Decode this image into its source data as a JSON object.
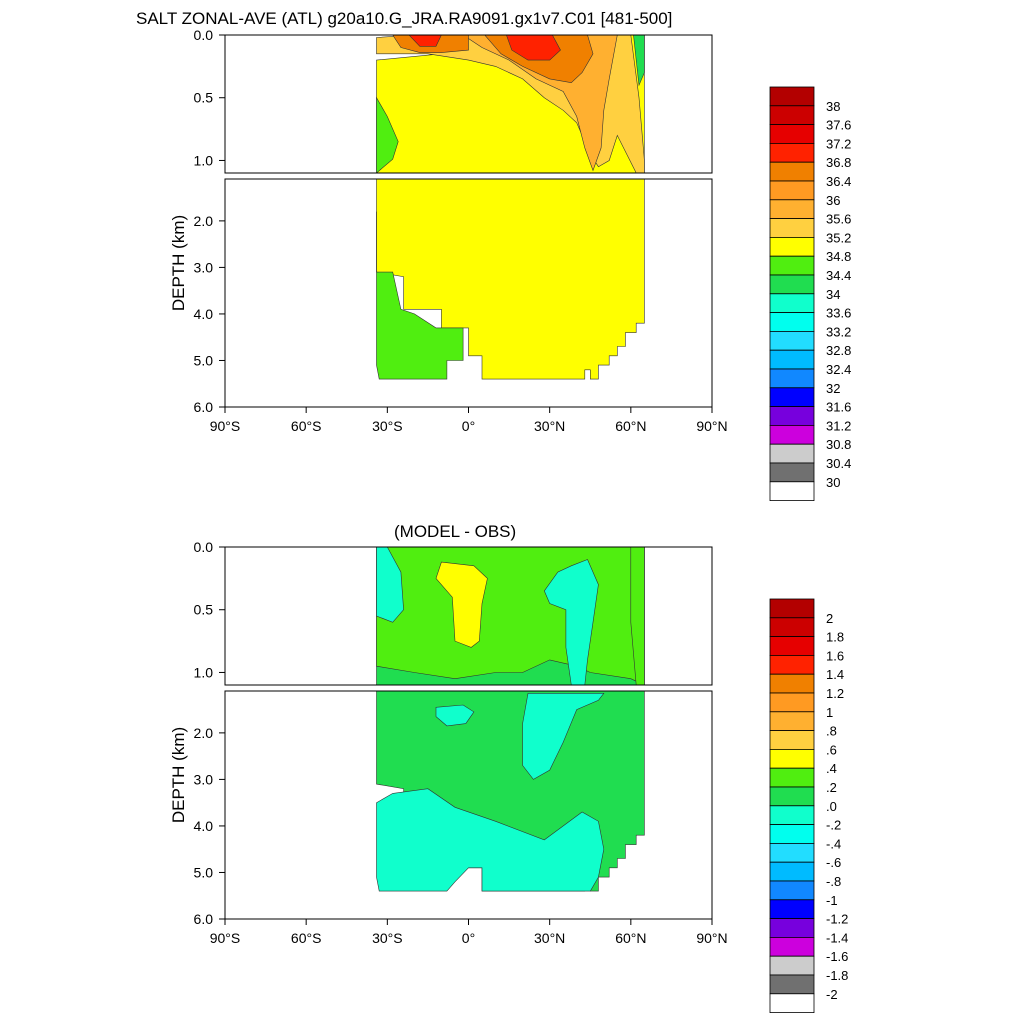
{
  "titles": {
    "top": "SALT ZONAL-AVE (ATL) g20a10.G_JRA.RA9091.gx1v7.C01 [481-500]",
    "bottom": "(MODEL - OBS)"
  },
  "chart_data": [
    {
      "type": "heatmap",
      "name": "salinity",
      "title": "SALT ZONAL-AVE (ATL) g20a10.G_JRA.RA9091.gx1v7.C01 [481-500]",
      "ylabel": "DEPTH (km)",
      "xlim": [
        -90,
        90
      ],
      "ylim": [
        6.0,
        0.0
      ],
      "y_break_km": 1.1,
      "x_ticks": [
        {
          "value": -90,
          "label": "90°S"
        },
        {
          "value": -60,
          "label": "60°S"
        },
        {
          "value": -30,
          "label": "30°S"
        },
        {
          "value": 0,
          "label": "0°"
        },
        {
          "value": 30,
          "label": "30°N"
        },
        {
          "value": 60,
          "label": "60°N"
        },
        {
          "value": 90,
          "label": "90°N"
        }
      ],
      "y_ticks_upper": [
        {
          "value": 0.0,
          "label": "0.0"
        },
        {
          "value": 0.5,
          "label": "0.5"
        },
        {
          "value": 1.0,
          "label": "1.0"
        }
      ],
      "y_ticks_lower": [
        {
          "value": 2.0,
          "label": "2.0"
        },
        {
          "value": 3.0,
          "label": "3.0"
        },
        {
          "value": 4.0,
          "label": "4.0"
        },
        {
          "value": 5.0,
          "label": "5.0"
        },
        {
          "value": 6.0,
          "label": "6.0"
        }
      ],
      "data_lat_range": [
        -34,
        65
      ],
      "colorbar": {
        "labels": [
          "38",
          "37.6",
          "37.2",
          "36.8",
          "36.4",
          "36",
          "35.6",
          "35.2",
          "34.8",
          "34.4",
          "34",
          "33.6",
          "33.2",
          "32.8",
          "32.4",
          "32",
          "31.6",
          "31.2",
          "30.8",
          "30.4",
          "30"
        ],
        "colors": [
          "#b30000",
          "#cc0000",
          "#e60000",
          "#ff2200",
          "#f08000",
          "#ff9a22",
          "#ffb030",
          "#ffd040",
          "#ffff00",
          "#50ee10",
          "#20dd50",
          "#10ffcc",
          "#00ffee",
          "#22ddff",
          "#00bbff",
          "#1188ff",
          "#0000ff",
          "#7700dd",
          "#cc00dd",
          "#cccccc",
          "#707070",
          "#ffffff"
        ]
      },
      "regions": [
        {
          "id": "background",
          "value": "35.0"
        },
        {
          "id": "south-fresh-upper",
          "value": "34.6"
        },
        {
          "id": "south-fresh-deep",
          "value": "34.6"
        },
        {
          "id": "subtropical-salty",
          "value": "35.4"
        },
        {
          "id": "salty-tongue",
          "value": "35.8"
        },
        {
          "id": "core-south",
          "value": "36.6"
        },
        {
          "id": "core-north",
          "value": "36.6"
        },
        {
          "id": "max-south",
          "value": "37.0"
        },
        {
          "id": "max-north",
          "value": "37.0"
        },
        {
          "id": "arctic-edge",
          "value": "34.2"
        }
      ]
    },
    {
      "type": "heatmap",
      "name": "difference",
      "title": "(MODEL - OBS)",
      "ylabel": "DEPTH (km)",
      "xlim": [
        -90,
        90
      ],
      "ylim": [
        6.0,
        0.0
      ],
      "y_break_km": 1.1,
      "x_ticks": [
        {
          "value": -90,
          "label": "90°S"
        },
        {
          "value": -60,
          "label": "60°S"
        },
        {
          "value": -30,
          "label": "30°S"
        },
        {
          "value": 0,
          "label": "0°"
        },
        {
          "value": 30,
          "label": "30°N"
        },
        {
          "value": 60,
          "label": "60°N"
        },
        {
          "value": 90,
          "label": "90°N"
        }
      ],
      "y_ticks_upper": [
        {
          "value": 0.0,
          "label": "0.0"
        },
        {
          "value": 0.5,
          "label": "0.5"
        },
        {
          "value": 1.0,
          "label": "1.0"
        }
      ],
      "y_ticks_lower": [
        {
          "value": 2.0,
          "label": "2.0"
        },
        {
          "value": 3.0,
          "label": "3.0"
        },
        {
          "value": 4.0,
          "label": "4.0"
        },
        {
          "value": 5.0,
          "label": "5.0"
        },
        {
          "value": 6.0,
          "label": "6.0"
        }
      ],
      "data_lat_range": [
        -34,
        65
      ],
      "colorbar": {
        "labels": [
          "2",
          "1.8",
          "1.6",
          "1.4",
          "1.2",
          "1",
          ".8",
          ".6",
          ".4",
          ".2",
          ".0",
          "-.2",
          "-.4",
          "-.6",
          "-.8",
          "-1",
          "-1.2",
          "-1.4",
          "-1.6",
          "-1.8",
          "-2"
        ],
        "colors": [
          "#b30000",
          "#cc0000",
          "#e60000",
          "#ff2200",
          "#f08000",
          "#ff9a22",
          "#ffb030",
          "#ffd040",
          "#ffff00",
          "#50ee10",
          "#20dd50",
          "#10ffcc",
          "#00ffee",
          "#22ddff",
          "#00bbff",
          "#1188ff",
          "#0000ff",
          "#7700dd",
          "#cc00dd",
          "#cccccc",
          "#707070",
          "#ffffff"
        ]
      },
      "regions": [
        {
          "id": "background",
          "value": "0.1"
        },
        {
          "id": "upper-positive",
          "value": "0.3"
        },
        {
          "id": "upper-salty-lens",
          "value": "0.5"
        },
        {
          "id": "south-surface-negative",
          "value": "-0.1"
        },
        {
          "id": "north-negative-upper",
          "value": "-0.1"
        },
        {
          "id": "north-negative-tongue",
          "value": "-0.1"
        },
        {
          "id": "deep-lens",
          "value": "-0.1"
        },
        {
          "id": "abyssal-negative",
          "value": "-0.1"
        },
        {
          "id": "arctic-edge",
          "value": "0.3"
        }
      ]
    }
  ]
}
